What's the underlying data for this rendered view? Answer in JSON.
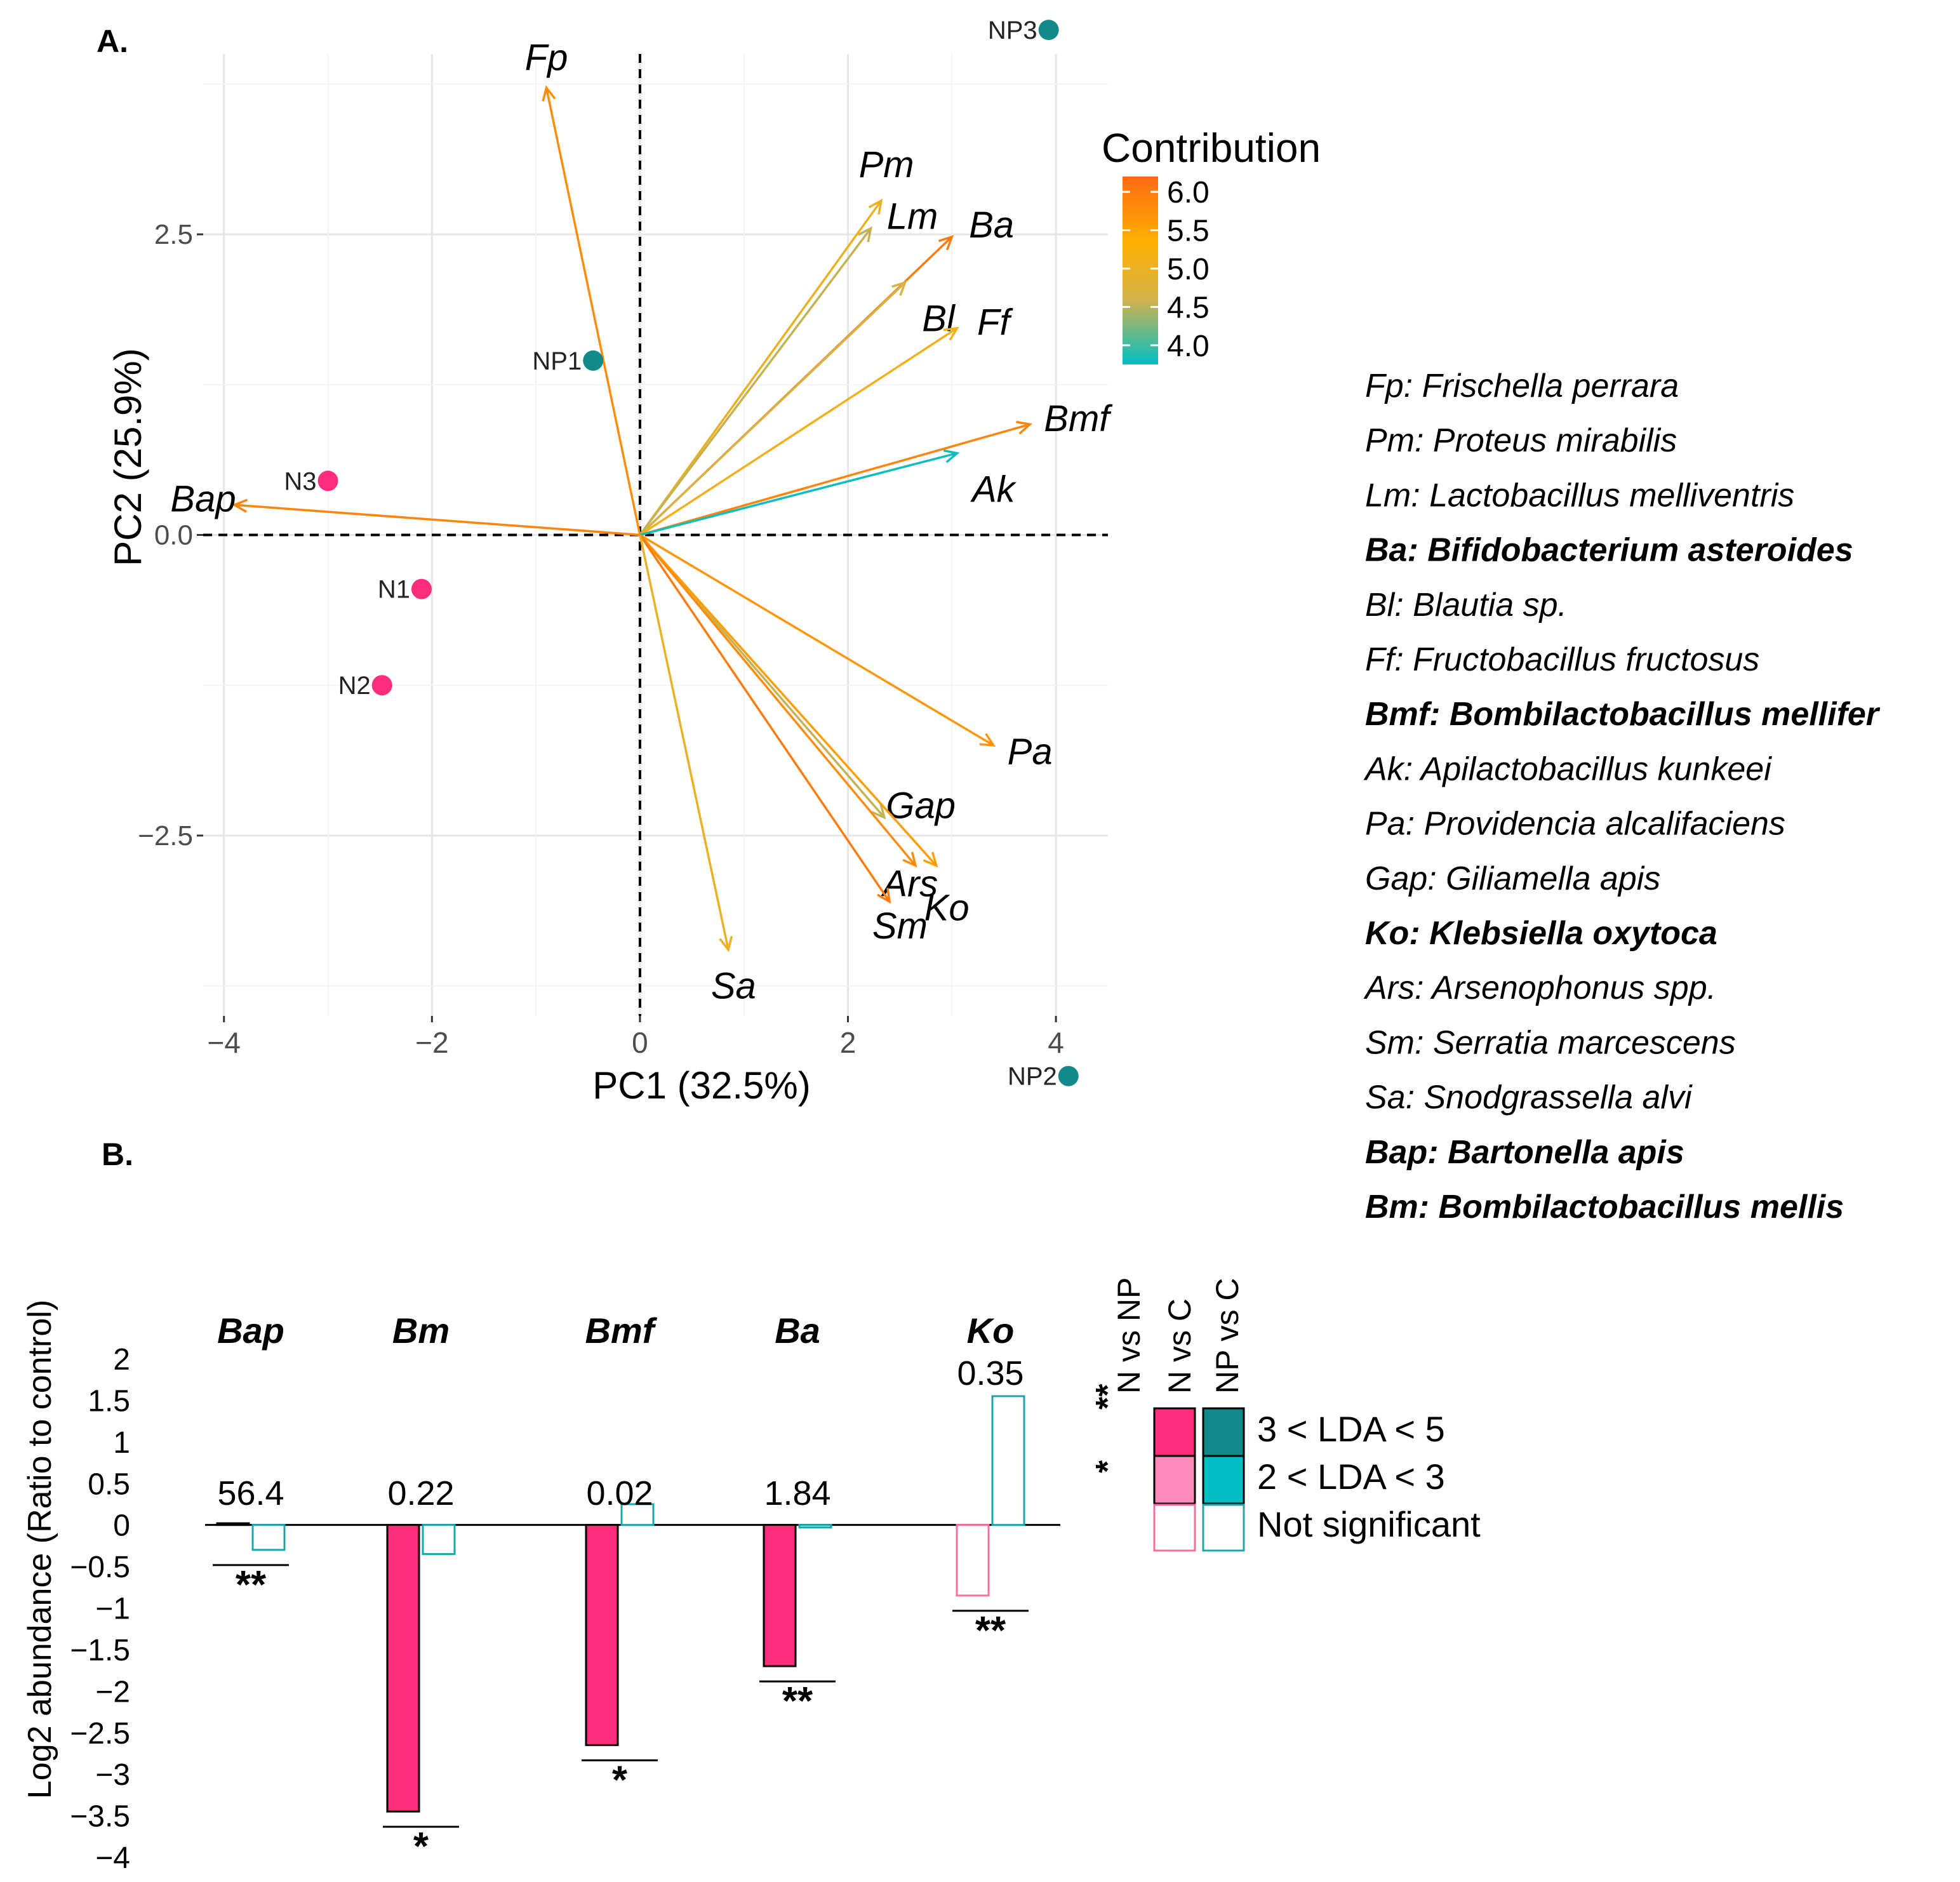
{
  "panel_a": {
    "label": "A.",
    "contribution_legend": {
      "title": "Contribution",
      "ticks": [
        "6.0",
        "5.5",
        "5.0",
        "4.5",
        "4.0"
      ],
      "tick_values": [
        6.0,
        5.5,
        5.0,
        4.5,
        4.0
      ],
      "range": [
        3.75,
        6.2
      ],
      "colors": [
        "#00BFC4",
        "#D4B24A",
        "#FFB000",
        "#FF6A13"
      ]
    },
    "species_legend": [
      {
        "text": "Fp: Frischella perrara",
        "bold": false
      },
      {
        "text": "Pm: Proteus mirabilis",
        "bold": false
      },
      {
        "text": "Lm: Lactobacillus melliventris",
        "bold": false
      },
      {
        "text": "Ba: Bifidobacterium asteroides",
        "bold": true
      },
      {
        "text": "Bl: Blautia sp.",
        "bold": false
      },
      {
        "text": "Ff: Fructobacillus fructosus",
        "bold": false
      },
      {
        "text": "Bmf: Bombilactobacillus mellifer",
        "bold": true
      },
      {
        "text": "Ak: Apilactobacillus kunkeei",
        "bold": false
      },
      {
        "text": "Pa: Providencia alcalifaciens",
        "bold": false
      },
      {
        "text": "Gap: Giliamella apis",
        "bold": false
      },
      {
        "text": "Ko: Klebsiella oxytoca",
        "bold": true
      },
      {
        "text": "Ars: Arsenophonus spp.",
        "bold": false
      },
      {
        "text": "Sm: Serratia marcescens",
        "bold": false
      },
      {
        "text": "Sa: Snodgrassella alvi",
        "bold": false
      },
      {
        "text": "Bap: Bartonella apis",
        "bold": true
      },
      {
        "text": "Bm: Bombilactobacillus mellis",
        "bold": true
      }
    ]
  },
  "panel_b": {
    "label": "B.",
    "legend": {
      "col_headers": [
        "N vs NP",
        "N vs C",
        "NP vs C"
      ],
      "stars": [
        "**",
        "*"
      ],
      "rows": [
        "3 < LDA < 5",
        "2 < LDA < 3",
        "Not significant"
      ],
      "colors": {
        "n_strong": "#FF2D7A",
        "n_weak": "#FF89B8",
        "np_strong": "#138A8A",
        "np_weak": "#00BFC4",
        "n_outline": "#F46FA0",
        "np_outline": "#1AA7AD"
      }
    }
  },
  "chart_data": [
    {
      "type": "scatter",
      "subtype": "pca-biplot",
      "xlabel": "PC1 (32.5%)",
      "ylabel": "PC2 (25.9%)",
      "xlim": [
        -4.2,
        4.5
      ],
      "ylim": [
        -4.0,
        4.0
      ],
      "xticks": [
        -4,
        -2,
        0,
        2,
        4
      ],
      "xtick_labels": [
        "−4",
        "−2",
        "0",
        "2",
        "4"
      ],
      "yticks": [
        -2.5,
        0.0,
        2.5
      ],
      "ytick_labels": [
        "−2.5",
        "0.0",
        "2.5"
      ],
      "grid": true,
      "points": [
        {
          "label": "NP3",
          "x": 3.93,
          "y": 4.2,
          "group": "NP",
          "color": "#138A8A",
          "label_side": "left"
        },
        {
          "label": "NP1",
          "x": -0.45,
          "y": 1.45,
          "group": "NP",
          "color": "#138A8A",
          "label_side": "left"
        },
        {
          "label": "NP2",
          "x": 4.12,
          "y": -4.5,
          "group": "NP",
          "color": "#138A8A",
          "label_side": "left"
        },
        {
          "label": "N3",
          "x": -3.0,
          "y": 0.45,
          "group": "N",
          "color": "#FF2D7A",
          "label_side": "left"
        },
        {
          "label": "N1",
          "x": -2.1,
          "y": -0.45,
          "group": "N",
          "color": "#FF2D7A",
          "label_side": "left"
        },
        {
          "label": "N2",
          "x": -2.48,
          "y": -1.25,
          "group": "N",
          "color": "#FF2D7A",
          "label_side": "left"
        }
      ],
      "loadings": [
        {
          "label": "Fp",
          "x": -0.9,
          "y": 3.72,
          "contribution": 5.8,
          "label_dx": 0.0,
          "label_dy": 0.25
        },
        {
          "label": "Pm",
          "x": 2.32,
          "y": 2.78,
          "contribution": 5.0,
          "label_dx": 0.05,
          "label_dy": 0.3
        },
        {
          "label": "Lm",
          "x": 2.22,
          "y": 2.55,
          "contribution": 4.5,
          "label_dx": 0.4,
          "label_dy": 0.1
        },
        {
          "label": "Ba",
          "x": 3.0,
          "y": 2.48,
          "contribution": 6.0,
          "label_dx": 0.38,
          "label_dy": 0.1
        },
        {
          "label": "Bl",
          "x": 2.55,
          "y": 2.1,
          "contribution": 4.6,
          "label_dx": 0.32,
          "label_dy": -0.3
        },
        {
          "label": "Ff",
          "x": 3.05,
          "y": 1.72,
          "contribution": 5.1,
          "label_dx": 0.35,
          "label_dy": 0.05
        },
        {
          "label": "Bmf",
          "x": 3.75,
          "y": 0.92,
          "contribution": 5.9,
          "label_dx": 0.45,
          "label_dy": 0.05
        },
        {
          "label": "Ak",
          "x": 3.05,
          "y": 0.68,
          "contribution": 3.8,
          "label_dx": 0.35,
          "label_dy": -0.3
        },
        {
          "label": "Pa",
          "x": 3.4,
          "y": -1.75,
          "contribution": 5.7,
          "label_dx": 0.35,
          "label_dy": -0.05
        },
        {
          "label": "Gap",
          "x": 2.35,
          "y": -2.35,
          "contribution": 4.5,
          "label_dx": 0.35,
          "label_dy": 0.1
        },
        {
          "label": "Ko",
          "x": 2.85,
          "y": -2.75,
          "contribution": 5.6,
          "label_dx": 0.1,
          "label_dy": -0.35
        },
        {
          "label": "Ars",
          "x": 2.65,
          "y": -2.75,
          "contribution": 5.8,
          "label_dx": -0.05,
          "label_dy": -0.15
        },
        {
          "label": "Sm",
          "x": 2.4,
          "y": -3.05,
          "contribution": 6.0,
          "label_dx": 0.1,
          "label_dy": -0.2
        },
        {
          "label": "Sa",
          "x": 0.85,
          "y": -3.45,
          "contribution": 5.0,
          "label_dx": 0.05,
          "label_dy": -0.3
        },
        {
          "label": "Bap",
          "x": -3.9,
          "y": 0.25,
          "contribution": 5.9,
          "label_dx": -0.3,
          "label_dy": 0.05
        }
      ]
    },
    {
      "type": "bar",
      "ylabel": "Log2 abundance (Ratio to control)",
      "ylim": [
        -4,
        2
      ],
      "yticks": [
        2,
        1.5,
        1,
        0.5,
        0,
        -0.5,
        -1,
        -1.5,
        -2,
        -2.5,
        -3,
        -3.5,
        -4
      ],
      "ytick_labels": [
        "2",
        "1.5",
        "1",
        "0.5",
        "0",
        "−0.5",
        "−1",
        "−1.5",
        "−2",
        "−2.5",
        "−3",
        "−3.5",
        "−4"
      ],
      "categories": [
        "Bap",
        "Bm",
        "Bmf",
        "Ba",
        "Ko"
      ],
      "ratio_labels": [
        "56.4",
        "0.22",
        "0.02",
        "1.84",
        "0.35"
      ],
      "significance": [
        "**",
        "*",
        "*",
        "**",
        "**"
      ],
      "series": [
        {
          "name": "N vs C",
          "values": [
            0.02,
            -3.45,
            -2.65,
            -1.7,
            -0.85
          ],
          "fill": [
            "strong",
            "strong",
            "strong",
            "strong",
            "none"
          ]
        },
        {
          "name": "NP vs C",
          "values": [
            -0.3,
            -0.35,
            0.25,
            -0.03,
            1.55
          ],
          "fill": [
            "none",
            "none",
            "none",
            "none",
            "none"
          ]
        }
      ]
    }
  ]
}
